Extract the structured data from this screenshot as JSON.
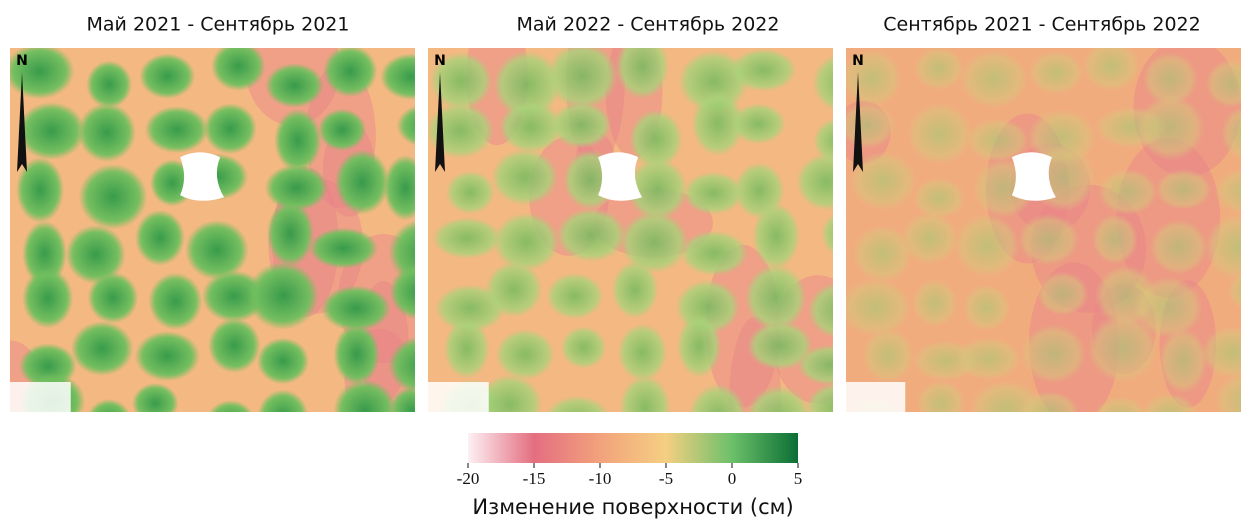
{
  "panels": [
    {
      "title": "Май 2021 - Сентябрь 2021"
    },
    {
      "title": "Май 2022 - Сентябрь 2022"
    },
    {
      "title": "Сентябрь 2021 - Сентябрь 2022"
    }
  ],
  "north_label": "N",
  "colorbar": {
    "label": "Изменение поверхности (см)",
    "lim": [
      -20,
      5
    ],
    "ticks": [
      -20,
      -15,
      -10,
      -5,
      0,
      5
    ],
    "colors": [
      "#fdf0f4",
      "#e46e80",
      "#f2a27c",
      "#f5cf82",
      "#6cc06a",
      "#0a6e34"
    ]
  }
}
